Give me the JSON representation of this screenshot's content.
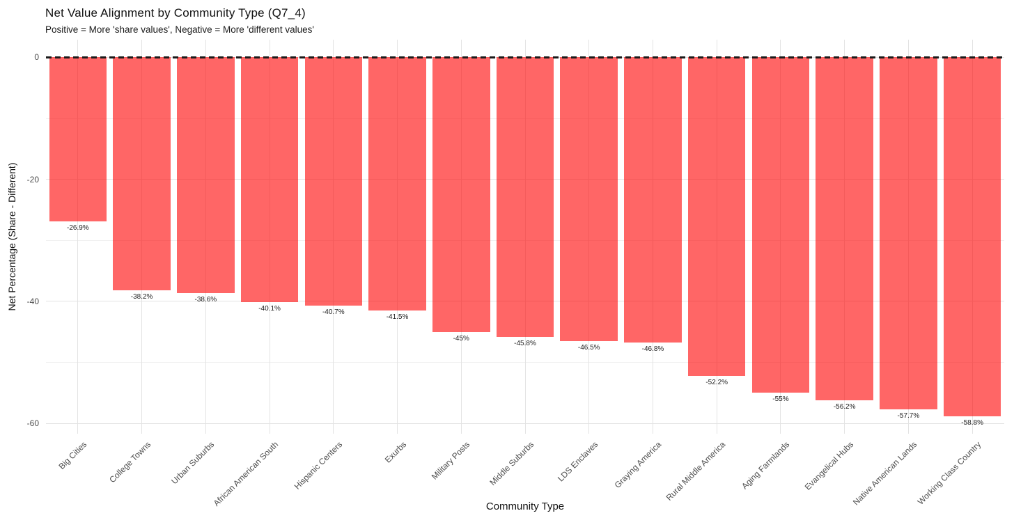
{
  "chart_data": {
    "type": "bar",
    "title": "Net Value Alignment by Community Type (Q7_4)",
    "subtitle": "Positive = More 'share values', Negative = More 'different values'",
    "xlabel": "Community Type",
    "ylabel": "Net Percentage (Share - Different)",
    "categories": [
      "Big Cities",
      "College Towns",
      "Urban Suburbs",
      "African American South",
      "Hispanic Centers",
      "Exurbs",
      "Military Posts",
      "Middle Suburbs",
      "LDS Enclaves",
      "Graying America",
      "Rural Middle America",
      "Aging Farmlands",
      "Evangelical Hubs",
      "Native American Lands",
      "Working Class Country"
    ],
    "values": [
      -26.9,
      -38.2,
      -38.6,
      -40.1,
      -40.7,
      -41.5,
      -45,
      -45.8,
      -46.5,
      -46.8,
      -52.2,
      -55,
      -56.2,
      -57.7,
      -58.8
    ],
    "bar_labels": [
      "-26.9%",
      "-38.2%",
      "-38.6%",
      "-40.1%",
      "-40.7%",
      "-41.5%",
      "-45%",
      "-45.8%",
      "-46.5%",
      "-46.8%",
      "-52.2%",
      "-55%",
      "-56.2%",
      "-57.7%",
      "-58.8%"
    ],
    "y_ticks": [
      0,
      -20,
      -40,
      -60
    ],
    "y_tick_labels": [
      "0",
      "-20",
      "-40",
      "-60"
    ],
    "y_minor_ticks": [
      -10,
      -30,
      -50
    ],
    "ylim": [
      -61.7,
      2.9
    ],
    "grid": "on",
    "legend": "none",
    "reference_line": {
      "y": 0,
      "style": "dashed"
    },
    "style": {
      "bar_fill": "rgba(255,0,0,0.6)",
      "bar_fill_hex": "#FF6666",
      "bar_width_fraction": 0.9,
      "grid_major_color": "#E3E3E3",
      "grid_minor_color": "#F0F0F0",
      "zero_line_color": "#1a1a1a",
      "axis_text_color": "#4d4d4d",
      "label_text_color": "#1c1c1c",
      "background": "#FFFFFF"
    }
  }
}
